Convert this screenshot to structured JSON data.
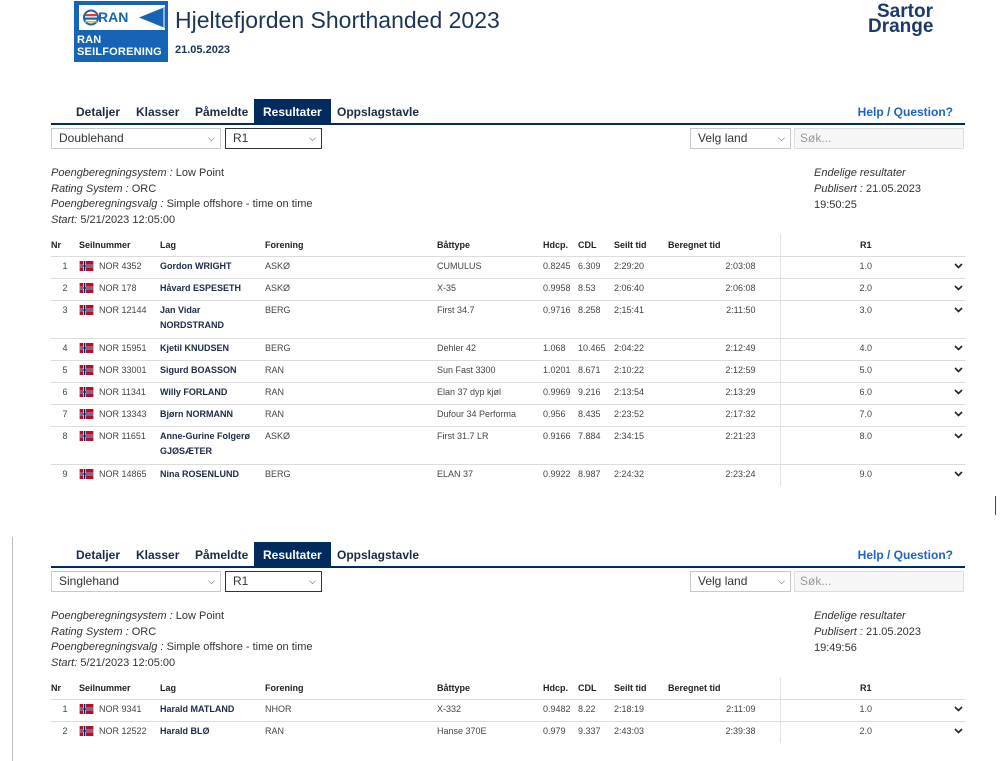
{
  "header": {
    "logo_top": "RAN",
    "logo_line1": "RAN",
    "logo_line2": "SEILFORENING",
    "title": "Hjeltefjorden Shorthanded 2023",
    "date": "21.05.2023",
    "sponsor_line1": "Sartor",
    "sponsor_line2": "Drange"
  },
  "sections": [
    {
      "tabs": [
        "Detaljer",
        "Klasser",
        "Påmeldte",
        "Resultater",
        "Oppslagstavle"
      ],
      "active_tab": "Resultater",
      "help": "Help / Question?",
      "class_select": "Doublehand",
      "race_select": "R1",
      "country_select": "Velg land",
      "search_placeholder": "Søk...",
      "scoring_label": "Poengberegningsystem :",
      "scoring_value": "Low Point",
      "rating_label": "Rating System :",
      "rating_value": "ORC",
      "option_label": "Poengberegningsvalg :",
      "option_value": "Simple offshore - time on time",
      "start_label": "Start:",
      "start_value": "5/21/2023 12:05:00",
      "final_label": "Endelige resultater",
      "published_label": "Publisert :",
      "published_value": "21.05.2023 19:50:25",
      "columns": [
        "Nr",
        "Seilnummer",
        "Lag",
        "Forening",
        "Båttype",
        "Hdcp.",
        "CDL",
        "Seilt tid",
        "Beregnet tid",
        "R1"
      ],
      "rows": [
        {
          "nr": "1",
          "sail": "NOR 4352",
          "crew": "Gordon WRIGHT",
          "club": "ASKØ",
          "boat": "CUMULUS",
          "hdcp": "0.8245",
          "cdl": "6.309",
          "sailed": "2:29:20",
          "corrected": "2:03:08",
          "r1": "1.0"
        },
        {
          "nr": "2",
          "sail": "NOR 178",
          "crew": "Håvard ESPESETH",
          "club": "ASKØ",
          "boat": "X-35",
          "hdcp": "0.9958",
          "cdl": "8.53",
          "sailed": "2:06:40",
          "corrected": "2:06:08",
          "r1": "2.0"
        },
        {
          "nr": "3",
          "sail": "NOR 12144",
          "crew": "Jan Vidar NORDSTRAND",
          "club": "BERG",
          "boat": "First 34.7",
          "hdcp": "0.9716",
          "cdl": "8.258",
          "sailed": "2:15:41",
          "corrected": "2:11:50",
          "r1": "3.0",
          "tall": true
        },
        {
          "nr": "4",
          "sail": "NOR 15951",
          "crew": "Kjetil KNUDSEN",
          "club": "BERG",
          "boat": "Dehler 42",
          "hdcp": "1.068",
          "cdl": "10.465",
          "sailed": "2:04:22",
          "corrected": "2:12:49",
          "r1": "4.0"
        },
        {
          "nr": "5",
          "sail": "NOR 33001",
          "crew": "Sigurd BOASSON",
          "club": "RAN",
          "boat": "Sun Fast 3300",
          "hdcp": "1.0201",
          "cdl": "8.671",
          "sailed": "2:10:22",
          "corrected": "2:12:59",
          "r1": "5.0"
        },
        {
          "nr": "6",
          "sail": "NOR 11341",
          "crew": "Willy FORLAND",
          "club": "RAN",
          "boat": "Elan 37 dyp kjøl",
          "hdcp": "0.9969",
          "cdl": "9.216",
          "sailed": "2:13:54",
          "corrected": "2:13:29",
          "r1": "6.0"
        },
        {
          "nr": "7",
          "sail": "NOR 13343",
          "crew": "Bjørn NORMANN",
          "club": "RAN",
          "boat": "Dufour 34 Performa",
          "hdcp": "0.956",
          "cdl": "8.435",
          "sailed": "2:23:52",
          "corrected": "2:17:32",
          "r1": "7.0"
        },
        {
          "nr": "8",
          "sail": "NOR 11651",
          "crew": "Anne-Gurine Folgerø GJØSÆTER",
          "club": "ASKØ",
          "boat": "First 31.7 LR",
          "hdcp": "0.9166",
          "cdl": "7.884",
          "sailed": "2:34:15",
          "corrected": "2:21:23",
          "r1": "8.0",
          "tall": true
        },
        {
          "nr": "9",
          "sail": "NOR 14865",
          "crew": "Nina ROSENLUND",
          "club": "BERG",
          "boat": "ELAN 37",
          "hdcp": "0.9922",
          "cdl": "8.987",
          "sailed": "2:24:32",
          "corrected": "2:23:24",
          "r1": "9.0"
        }
      ]
    },
    {
      "tabs": [
        "Detaljer",
        "Klasser",
        "Påmeldte",
        "Resultater",
        "Oppslagstavle"
      ],
      "active_tab": "Resultater",
      "help": "Help / Question?",
      "class_select": "Singlehand",
      "race_select": "R1",
      "country_select": "Velg land",
      "search_placeholder": "Søk...",
      "scoring_label": "Poengberegningsystem :",
      "scoring_value": "Low Point",
      "rating_label": "Rating System :",
      "rating_value": "ORC",
      "option_label": "Poengberegningsvalg :",
      "option_value": "Simple offshore - time on time",
      "start_label": "Start:",
      "start_value": "5/21/2023 12:05:00",
      "final_label": "Endelige resultater",
      "published_label": "Publisert :",
      "published_value": "21.05.2023 19:49:56",
      "columns": [
        "Nr",
        "Seilnummer",
        "Lag",
        "Forening",
        "Båttype",
        "Hdcp.",
        "CDL",
        "Seilt tid",
        "Beregnet tid",
        "R1"
      ],
      "rows": [
        {
          "nr": "1",
          "sail": "NOR 9341",
          "crew": "Harald MATLAND",
          "club": "NHOR",
          "boat": "X-332",
          "hdcp": "0.9482",
          "cdl": "8.22",
          "sailed": "2:18:19",
          "corrected": "2:11:09",
          "r1": "1.0"
        },
        {
          "nr": "2",
          "sail": "NOR 12522",
          "crew": "Harald BLØ",
          "club": "RAN",
          "boat": "Hanse 370E",
          "hdcp": "0.979",
          "cdl": "9.337",
          "sailed": "2:43:03",
          "corrected": "2:39:38",
          "r1": "2.0"
        }
      ]
    }
  ],
  "colors": {
    "navy": "#002b5c",
    "link_blue": "#1e63c8",
    "logo_blue": "#1565b4",
    "sponsor_red": "#e63a2e"
  }
}
